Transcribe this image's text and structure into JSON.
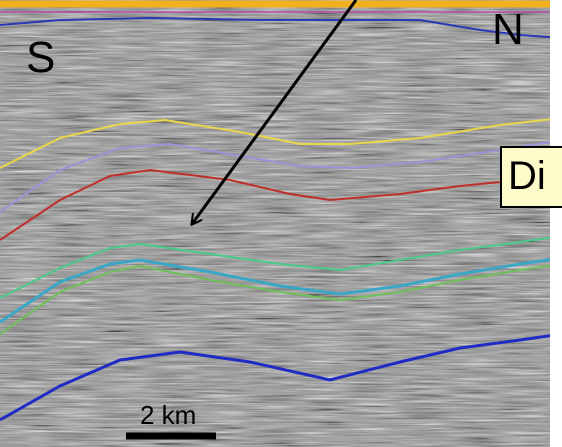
{
  "labels": {
    "south": "S",
    "north": "N",
    "callout": "Di",
    "scale": "2 km"
  },
  "colors": {
    "top_line": "#f2b01e",
    "horizon_1": "#e9d64a",
    "horizon_2": "#9b94d8",
    "horizon_3": "#c0302a",
    "horizon_4": "#49c98a",
    "horizon_5": "#3aa7c7",
    "horizon_6": "#6fbf5a",
    "horizon_7": "#1f2bc4",
    "top_blue": "#2a37b7",
    "callout_bg": "#fdfbc9"
  }
}
